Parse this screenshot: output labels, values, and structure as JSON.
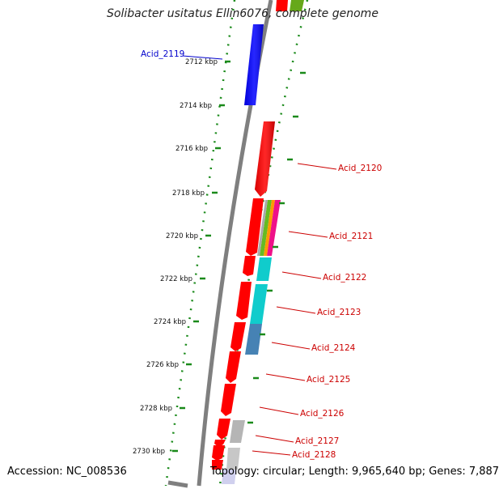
{
  "title": "Solibacter usitatus Ellin6076, complete genome",
  "footer": {
    "accession": "Accession: NC_008536",
    "info": "Topology: circular; Length: 9,965,640 bp; Genes: 7,887"
  },
  "colors": {
    "background": "#ffffff",
    "backbone": "#808080",
    "scale": "#1a8a1a",
    "forward_gene": "#ff0000",
    "highlight_gene": "#0000ff",
    "label_red": "#cc0000",
    "label_blue": "#0000cc"
  },
  "scale_ticks": [
    "2712 kbp",
    "2714 kbp",
    "2716 kbp",
    "2718 kbp",
    "2720 kbp",
    "2722 kbp",
    "2724 kbp",
    "2726 kbp",
    "2728 kbp",
    "2730 kbp"
  ],
  "gene_labels": [
    {
      "name": "Acid_2119",
      "color": "#0000cc"
    },
    {
      "name": "Acid_2120",
      "color": "#cc0000"
    },
    {
      "name": "Acid_2121",
      "color": "#cc0000"
    },
    {
      "name": "Acid_2122",
      "color": "#cc0000"
    },
    {
      "name": "Acid_2123",
      "color": "#cc0000"
    },
    {
      "name": "Acid_2124",
      "color": "#cc0000"
    },
    {
      "name": "Acid_2125",
      "color": "#cc0000"
    },
    {
      "name": "Acid_2126",
      "color": "#cc0000"
    },
    {
      "name": "Acid_2127",
      "color": "#cc0000"
    },
    {
      "name": "Acid_2128",
      "color": "#cc0000"
    }
  ]
}
